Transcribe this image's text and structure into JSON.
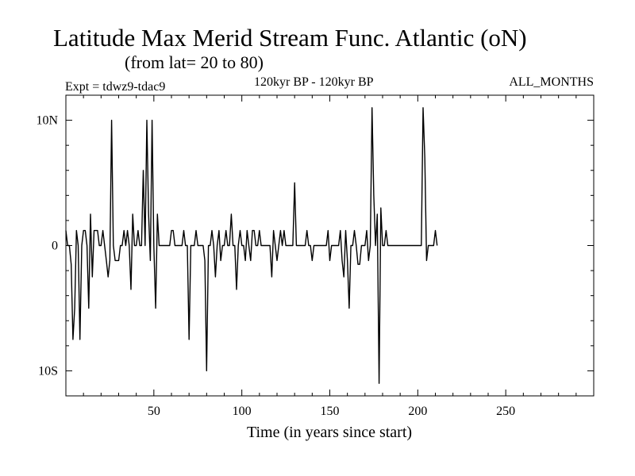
{
  "chart_data": {
    "type": "line",
    "title": "Latitude Max Merid Stream Func. Atlantic (oN)",
    "subtitle": "(from lat= 20 to 80)",
    "header_left": "Expt = tdwz9-tdac9",
    "header_center": "120kyr BP - 120kyr BP",
    "header_right": "ALL_MONTHS",
    "xlabel": "Time (in years since start)",
    "ylabel": "",
    "xlim": [
      0,
      300
    ],
    "ylim": [
      -12,
      12
    ],
    "x_ticks": [
      50,
      100,
      150,
      200,
      250
    ],
    "x_tick_labels": [
      "50",
      "100",
      "150",
      "200",
      "250"
    ],
    "y_ticks": [
      10,
      0,
      -10
    ],
    "y_tick_labels": [
      "10N",
      "0",
      "10S"
    ],
    "series": [
      {
        "name": "Latitude Max",
        "x_start": 0,
        "x_step": 1,
        "values": [
          1.2,
          0,
          0,
          -1.5,
          -7.5,
          -5,
          1.2,
          0,
          -7.5,
          0,
          1.2,
          1.2,
          0,
          -5,
          2.5,
          -2.5,
          1.2,
          1.2,
          1.2,
          0,
          0,
          1.2,
          0,
          -1.2,
          -2.5,
          -1.2,
          10,
          0,
          -1.2,
          -1.2,
          -1.2,
          0,
          0,
          1.2,
          0,
          1.2,
          0,
          -3.5,
          2.5,
          0,
          0,
          1.2,
          0,
          0,
          6,
          0,
          10,
          2.5,
          -1.2,
          10,
          0,
          -5,
          2.5,
          0,
          0,
          0,
          0,
          0,
          0,
          0,
          1.2,
          1.2,
          0,
          0,
          0,
          0,
          0,
          1.2,
          0,
          0,
          -7.5,
          0,
          0,
          0,
          1.2,
          0,
          0,
          0,
          0,
          -1.2,
          -10,
          0,
          0,
          1.2,
          0,
          -2.5,
          0,
          1.2,
          -1.2,
          0,
          0,
          1.2,
          0,
          0,
          2.5,
          0,
          0,
          -3.5,
          0,
          1.2,
          0,
          0,
          -1.2,
          1.2,
          0,
          -1.2,
          1.2,
          1.2,
          0,
          0,
          1.2,
          0,
          0,
          0,
          0,
          0,
          0,
          -2.5,
          1.2,
          0,
          -1.2,
          0,
          1.2,
          0,
          1.2,
          0,
          0,
          0,
          0,
          0,
          5,
          0,
          0,
          0,
          0,
          0,
          0,
          1.2,
          0,
          0,
          -1.2,
          0,
          0,
          0,
          0,
          0,
          0,
          0,
          0,
          1.2,
          -1.2,
          0,
          0,
          0,
          0,
          0,
          1.2,
          -1.2,
          -2.5,
          1.2,
          -1.2,
          -5,
          0,
          0,
          1.2,
          0,
          -1.5,
          -1.5,
          0,
          0,
          0,
          1.2,
          -1.2,
          0,
          11,
          4,
          0,
          2.5,
          -11,
          3,
          0,
          0,
          1.2,
          0,
          0,
          0,
          0,
          0,
          0,
          0,
          0,
          0,
          0,
          0,
          0,
          0,
          0,
          0,
          0,
          0,
          0,
          0,
          0,
          11,
          7,
          -1.2,
          0,
          0,
          0,
          0,
          1.2,
          0
        ],
        "color": "#000000"
      }
    ]
  }
}
